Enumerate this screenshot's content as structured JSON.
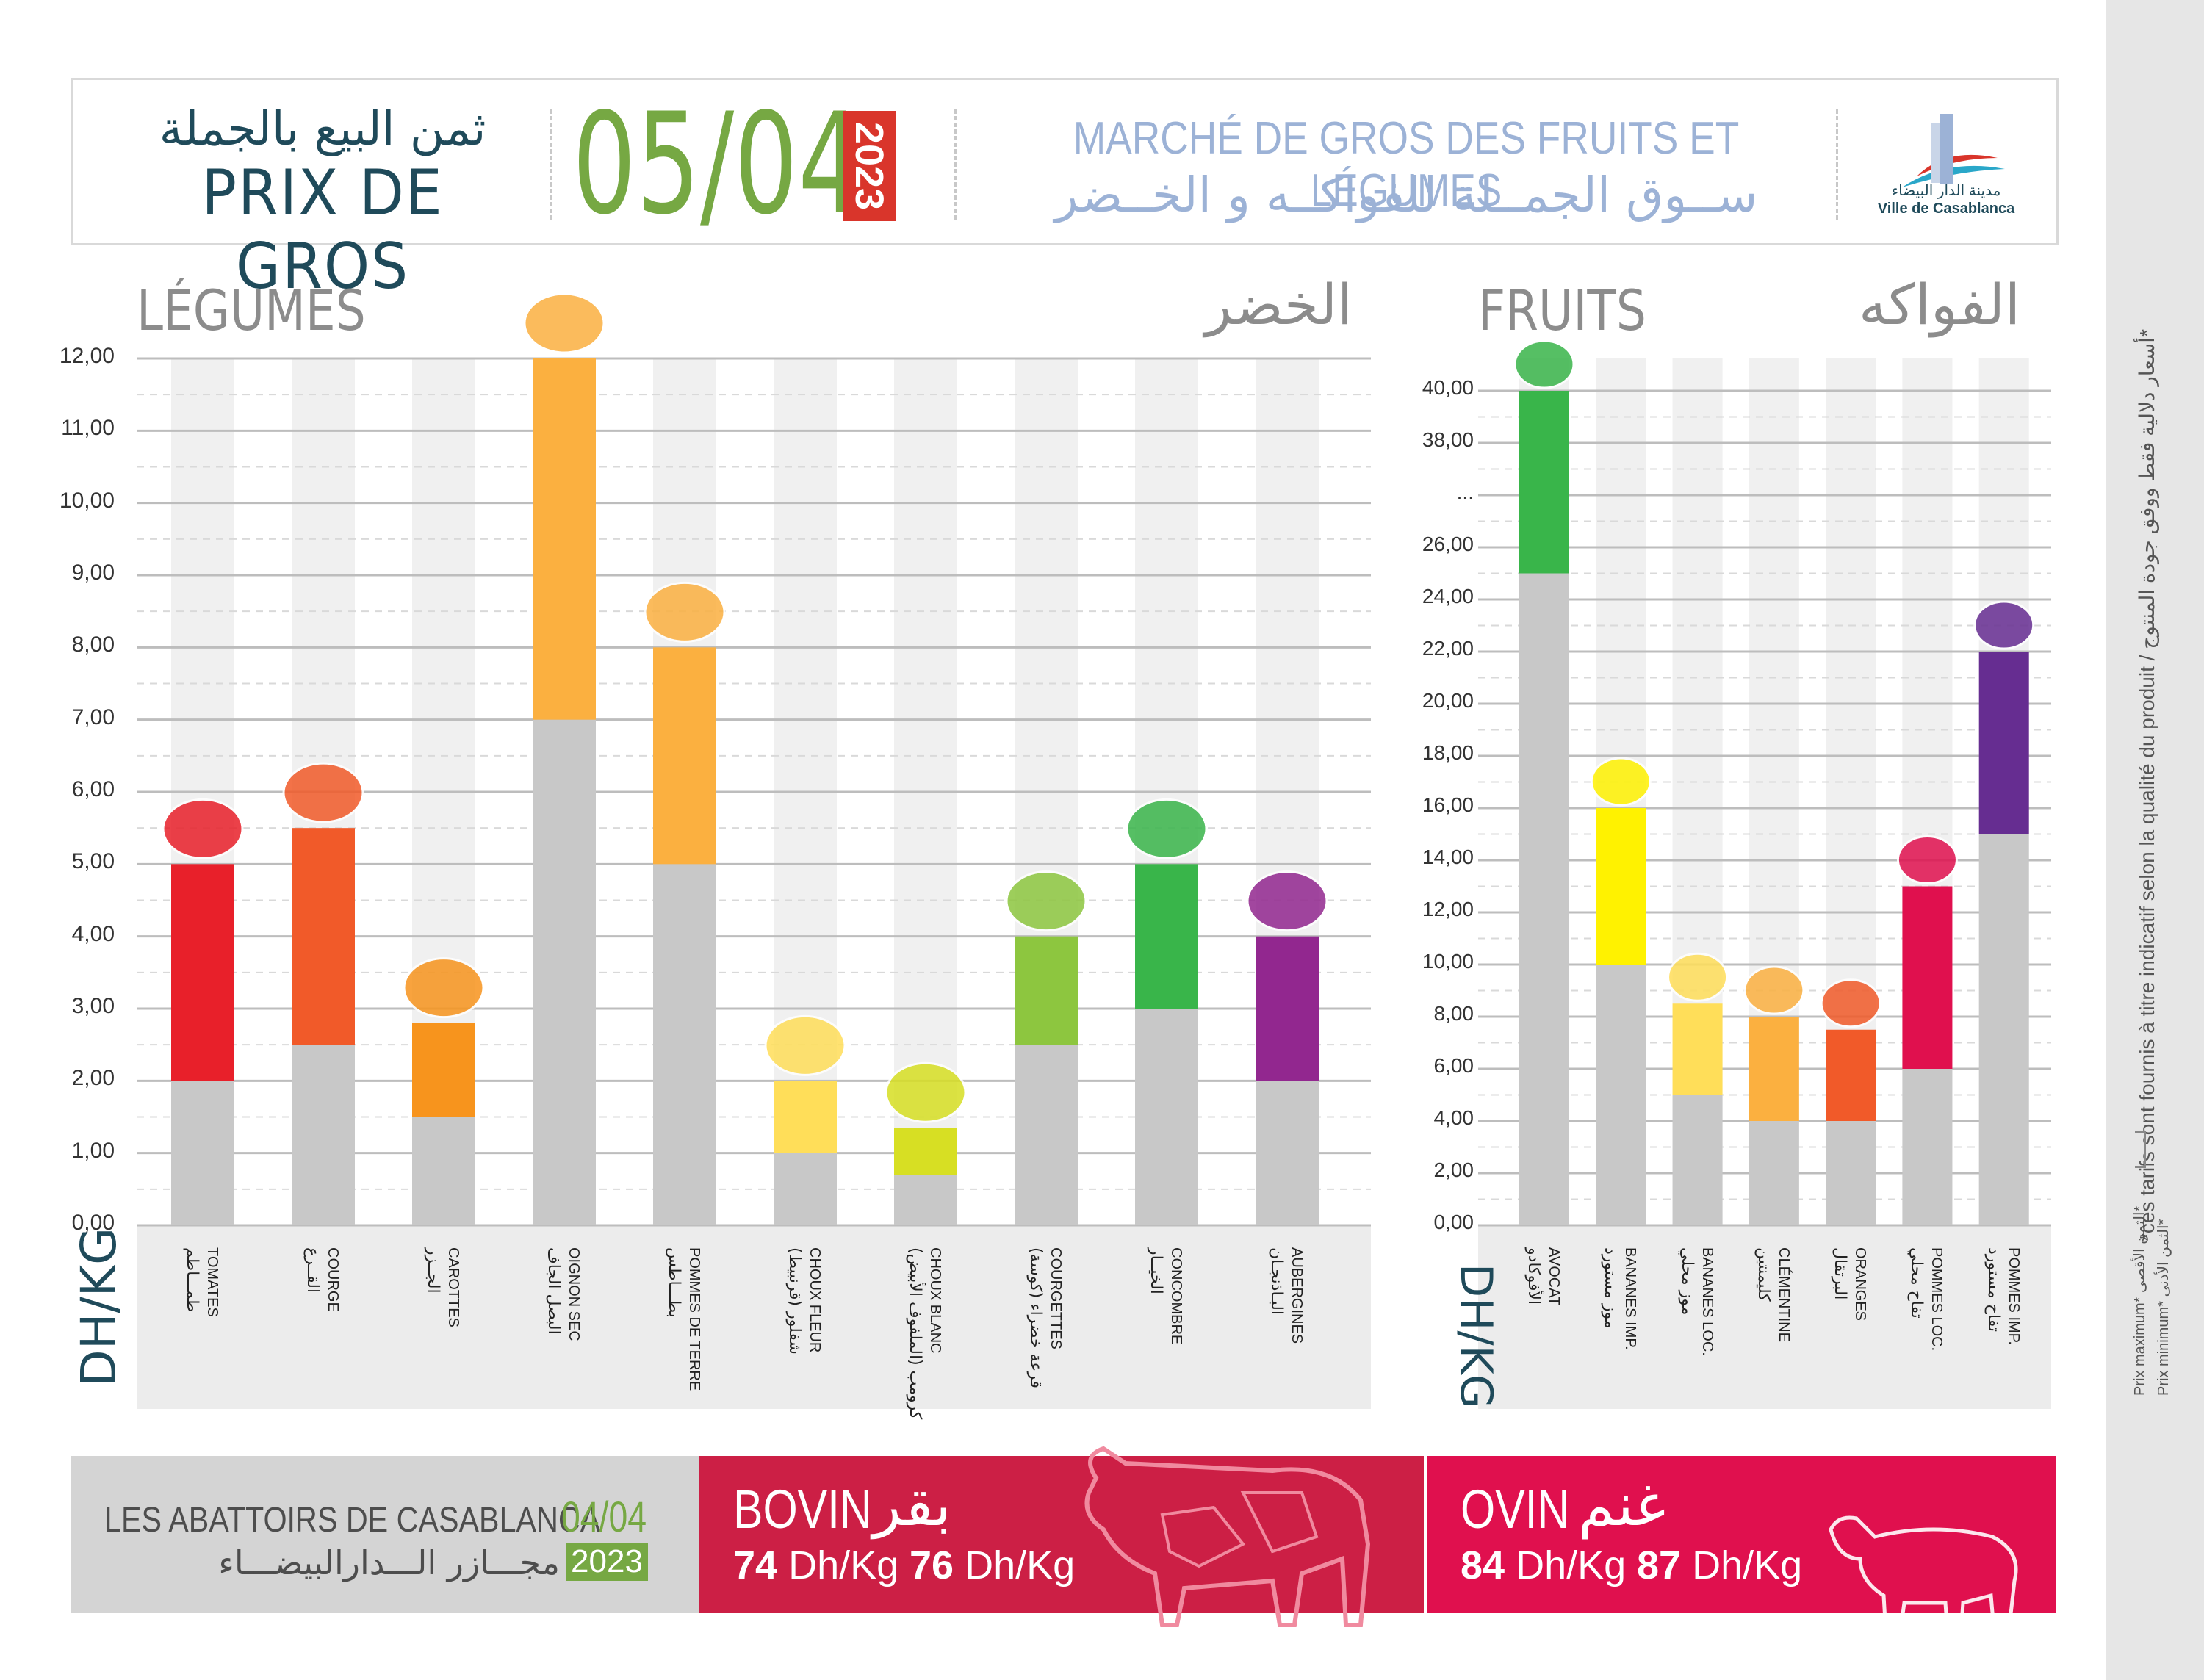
{
  "header": {
    "title_ar": "ثمن البيع بالجملة",
    "title_fr": "PRIX DE GROS",
    "date": "05/04",
    "year": "2023",
    "market_fr": "MARCHÉ DE GROS DES FRUITS ET LÉGUMES",
    "market_ar": "ســوق الجمــلة للفواكــه و الخــضر",
    "logo_ar": "مدينة الدار البيضاء",
    "logo_fr": "Ville de Casablanca"
  },
  "legumes": {
    "title_fr": "LÉGUMES",
    "title_ar": "الخضر",
    "unit": "DH/KG"
  },
  "fruits": {
    "title_fr": "FRUITS",
    "title_ar": "الفواكه",
    "unit": "DH/KG"
  },
  "chart_data": [
    {
      "type": "bar",
      "stacked_range": true,
      "ylim": [
        0,
        12
      ],
      "yticks": [
        "0,00",
        "1,00",
        "2,00",
        "3,00",
        "4,00",
        "5,00",
        "6,00",
        "7,00",
        "8,00",
        "9,00",
        "10,00",
        "11,00",
        "12,00"
      ],
      "categories": [
        {
          "fr": "TOMATES",
          "ar": "طمـــاطم",
          "min": 2.0,
          "max": 5.0,
          "color": "#e8202a",
          "icon": "tomato-icon"
        },
        {
          "fr": "COURGE",
          "ar": "القــرع",
          "min": 2.5,
          "max": 5.5,
          "color": "#f15a29",
          "icon": "pumpkin-icon"
        },
        {
          "fr": "CAROTTES",
          "ar": "الجــزر",
          "min": 1.5,
          "max": 2.8,
          "color": "#f7941d",
          "icon": "carrot-icon"
        },
        {
          "fr": "OIGNON SEC",
          "ar": "البصل الجاف",
          "min": 7.0,
          "max": 12.0,
          "color": "#fbb040",
          "icon": "onion-icon"
        },
        {
          "fr": "POMMES DE TERRE",
          "ar": "بطـــاطس",
          "min": 5.0,
          "max": 8.0,
          "color": "#fbb040",
          "icon": "potato-icon"
        },
        {
          "fr": "CHOUX FLEUR",
          "ar": "شفلور (قرنبيط)",
          "min": 1.0,
          "max": 2.0,
          "color": "#ffde59",
          "icon": "cauliflower-icon"
        },
        {
          "fr": "CHOUX BLANC",
          "ar": "كرومب (الملفوف الأبيض)",
          "min": 0.7,
          "max": 1.35,
          "color": "#d7df23",
          "icon": "cabbage-icon"
        },
        {
          "fr": "COURGETTES",
          "ar": "قرعة خضراء (كوسة)",
          "min": 2.5,
          "max": 4.0,
          "color": "#8dc63f",
          "icon": "zucchini-icon"
        },
        {
          "fr": "CONCOMBRE",
          "ar": "الخيــار",
          "min": 3.0,
          "max": 5.0,
          "color": "#39b54a",
          "icon": "cucumber-icon"
        },
        {
          "fr": "AUBERGINES",
          "ar": "البـاذنجـان",
          "min": 2.0,
          "max": 4.0,
          "color": "#92278f",
          "icon": "eggplant-icon"
        }
      ]
    },
    {
      "type": "bar",
      "stacked_range": true,
      "broken_axis": true,
      "yticks": [
        "0,00",
        "2,00",
        "4,00",
        "6,00",
        "8,00",
        "10,00",
        "12,00",
        "14,00",
        "16,00",
        "18,00",
        "20,00",
        "22,00",
        "24,00",
        "26,00",
        "...",
        "38,00",
        "40,00"
      ],
      "categories": [
        {
          "fr": "AVOCAT",
          "ar": "الأفوكادو",
          "min": 25.0,
          "max": 40.0,
          "color": "#39b54a",
          "icon": "avocado-icon"
        },
        {
          "fr": "BANANES IMP.",
          "ar": "موز مستورد",
          "min": 10.0,
          "max": 16.0,
          "color": "#fff200",
          "icon": "bananas-icon"
        },
        {
          "fr": "BANANES LOC.",
          "ar": "موز محلي",
          "min": 5.0,
          "max": 8.5,
          "color": "#ffde59",
          "icon": "banana-icon"
        },
        {
          "fr": "CLÉMENTINE",
          "ar": "كليمنتين",
          "min": 4.0,
          "max": 8.0,
          "color": "#fbb040",
          "icon": "clementine-icon"
        },
        {
          "fr": "ORANGES",
          "ar": "البرتقال",
          "min": 4.0,
          "max": 7.5,
          "color": "#f15a29",
          "icon": "orange-icon"
        },
        {
          "fr": "POMMES LOC.",
          "ar": "تفاح محلي",
          "min": 6.0,
          "max": 13.0,
          "color": "#e0104e",
          "icon": "apple-icon"
        },
        {
          "fr": "POMMES IMP.",
          "ar": "تفاح مستورد",
          "min": 15.0,
          "max": 22.0,
          "color": "#662d91",
          "icon": "apples-icon"
        }
      ]
    }
  ],
  "abattoirs": {
    "title_fr": "LES ABATTOIRS DE CASABLANCA",
    "title_ar": "مجـــازر الـــدارالبيضـــاء",
    "date": "04/04",
    "year": "2023",
    "bovin": {
      "fr": "BOVIN",
      "ar": "بقر",
      "min": "74",
      "max": "76",
      "unit": "Dh/Kg"
    },
    "ovin": {
      "fr": "OVIN",
      "ar": "غنم",
      "min": "84",
      "max": "87",
      "unit": "Dh/Kg"
    }
  },
  "sidebar": {
    "note": "*ces tarifs sont fournis à titre indicatif selon la qualité du produit / أسعار دلالية فقط ووفق جودة المنتوج*",
    "legend_max": "Prix maximum* الثمن الأقصى*",
    "legend_min": "Prix minimum* الثمن الأدنى*"
  }
}
